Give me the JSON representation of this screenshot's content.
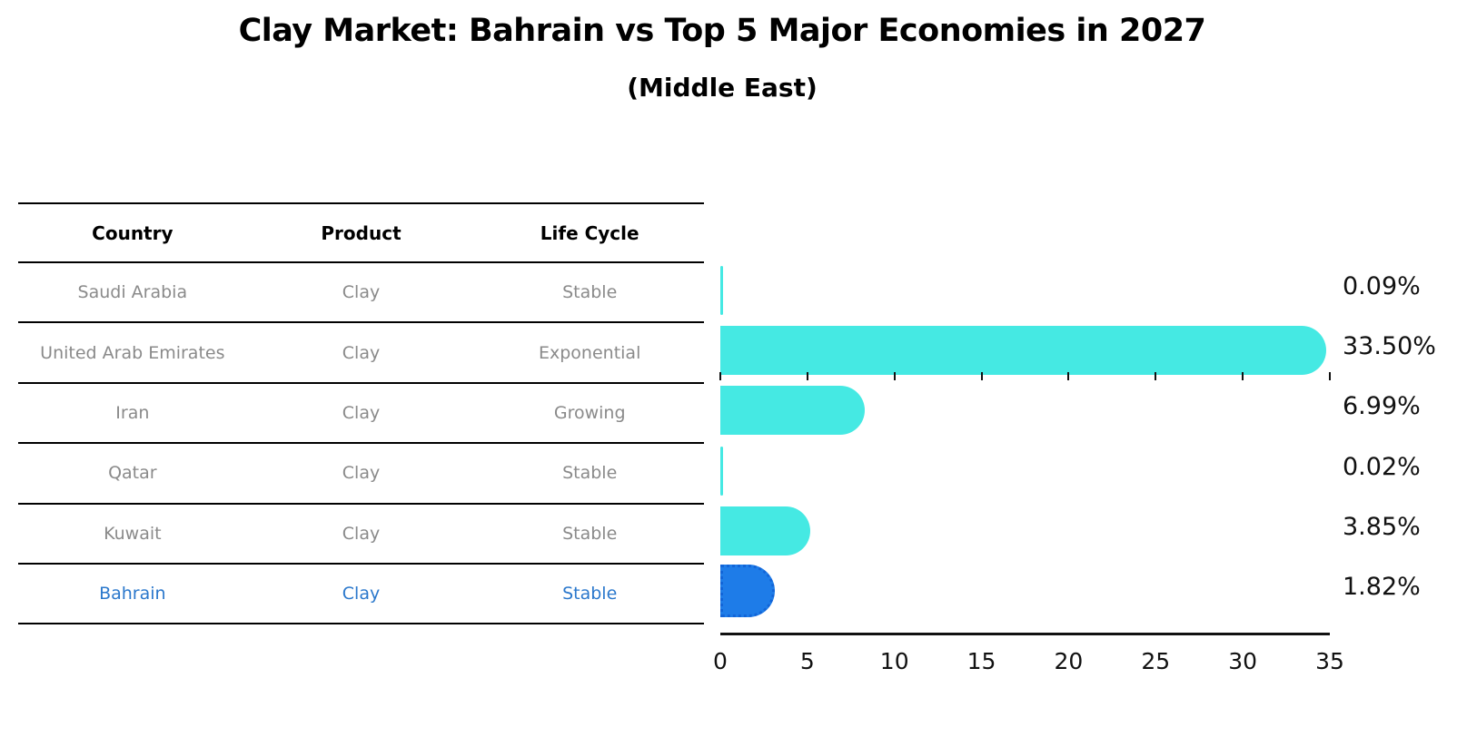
{
  "chart_data": {
    "type": "bar",
    "orientation": "horizontal",
    "title": "Clay Market: Bahrain vs Top 5 Major Economies in 2027",
    "subtitle": "(Middle East)",
    "table": {
      "headers": [
        "Country",
        "Product",
        "Life Cycle"
      ],
      "rows": [
        [
          "Saudi Arabia",
          "Clay",
          "Stable"
        ],
        [
          "United Arab Emirates",
          "Clay",
          "Exponential"
        ],
        [
          "Iran",
          "Clay",
          "Growing"
        ],
        [
          "Qatar",
          "Clay",
          "Stable"
        ],
        [
          "Kuwait",
          "Clay",
          "Stable"
        ],
        [
          "Bahrain",
          "Clay",
          "Stable"
        ]
      ]
    },
    "categories": [
      "Saudi Arabia",
      "United Arab Emirates",
      "Iran",
      "Qatar",
      "Kuwait",
      "Bahrain"
    ],
    "values": [
      0.09,
      33.5,
      6.99,
      0.02,
      3.85,
      1.82
    ],
    "value_labels": [
      "0.09%",
      "33.50%",
      "6.99%",
      "0.02%",
      "3.85%",
      "1.82%"
    ],
    "highlight_index": 5,
    "xlabel": "",
    "ylabel": "",
    "xlim": [
      0,
      35
    ],
    "xticks": [
      0,
      5,
      10,
      15,
      20,
      25,
      30,
      35
    ],
    "grid": false,
    "legend": false,
    "colors": {
      "bar_default": "#45E9E3",
      "bar_highlight": "#1E7CE8",
      "bar_highlight_border": "#1265D8",
      "highlight_text": "#2B78CC",
      "table_text": "#8A8A8A",
      "header_text": "#000000",
      "axis_text": "#111111"
    }
  }
}
